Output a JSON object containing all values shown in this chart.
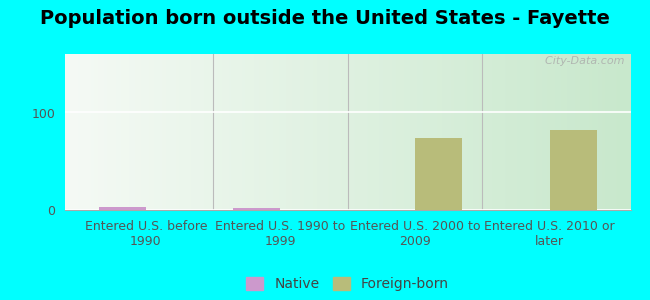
{
  "title": "Population born outside the United States - Fayette",
  "categories": [
    "Entered U.S. before\n1990",
    "Entered U.S. 1990 to\n1999",
    "Entered U.S. 2000 to\n2009",
    "Entered U.S. 2010 or\nlater"
  ],
  "native_values": [
    3,
    2,
    0,
    0
  ],
  "foreign_values": [
    0,
    0,
    74,
    82
  ],
  "native_color": "#cc99cc",
  "foreign_color": "#b8bc7a",
  "background_color": "#00ffff",
  "plot_bg_top": "#f5faf5",
  "plot_bg_bottom": "#c8e8cc",
  "ylim": [
    0,
    160
  ],
  "yticks": [
    0,
    100
  ],
  "bar_width": 0.35,
  "title_fontsize": 14,
  "tick_fontsize": 9,
  "legend_fontsize": 10,
  "watermark": "  City-Data.com"
}
